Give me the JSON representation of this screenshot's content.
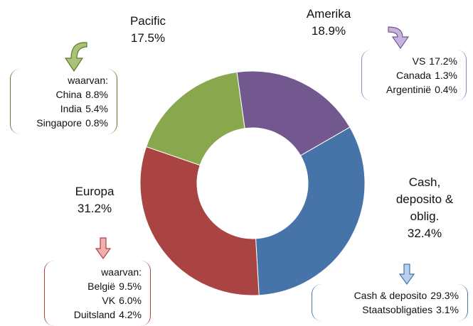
{
  "chart_data": {
    "type": "donut",
    "categories": [
      "Amerika",
      "Cash, deposito & oblig.",
      "Europa",
      "Pacific"
    ],
    "values": [
      18.9,
      32.4,
      31.2,
      17.5
    ],
    "value_labels": [
      "18.9%",
      "32.4%",
      "31.2%",
      "17.5%"
    ],
    "colors": [
      "#73588f",
      "#4673a8",
      "#a94442",
      "#89a84e"
    ],
    "breakdowns": [
      {
        "items": [
          "VS",
          "Canada",
          "Argentinië"
        ],
        "values": [
          17.2,
          1.3,
          0.4
        ],
        "value_labels": [
          "17.2%",
          "1.3%",
          "0.4%"
        ]
      },
      {
        "items": [
          "Cash & deposito",
          "Staatsobligaties"
        ],
        "values": [
          29.3,
          3.1
        ],
        "value_labels": [
          "29.3%",
          "3.1%"
        ]
      },
      {
        "title": "waarvan:",
        "items": [
          "België",
          "VK",
          "Duitsland"
        ],
        "values": [
          9.5,
          6.0,
          4.2
        ],
        "value_labels": [
          "9.5%",
          "6.0%",
          "4.2%"
        ]
      },
      {
        "title": "waarvan:",
        "items": [
          "China",
          "India",
          "Singapore"
        ],
        "values": [
          8.8,
          5.4,
          0.8
        ],
        "value_labels": [
          "8.8%",
          "5.4%",
          "0.8%"
        ]
      }
    ]
  }
}
